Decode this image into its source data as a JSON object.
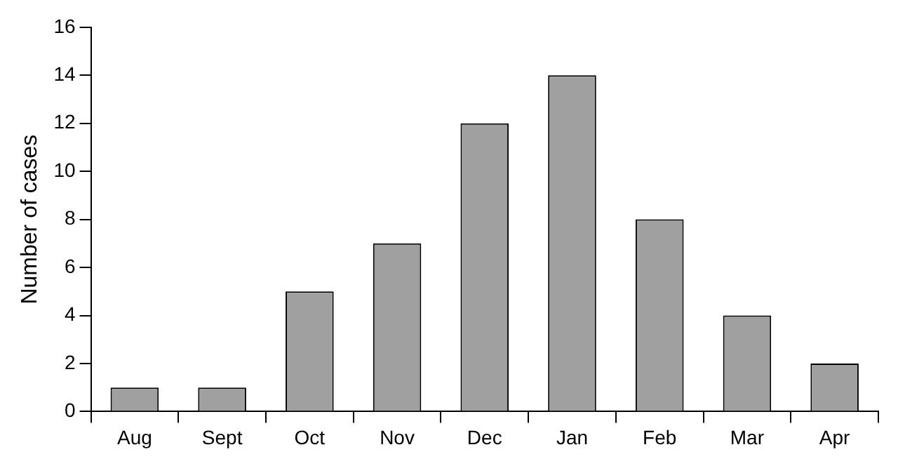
{
  "chart_data": {
    "type": "bar",
    "ylabel": "Number of cases",
    "categories": [
      "Aug",
      "Sept",
      "Oct",
      "Nov",
      "Dec",
      "Jan",
      "Feb",
      "Mar",
      "Apr"
    ],
    "values": [
      1,
      1,
      5,
      7,
      12,
      14,
      8,
      4,
      2
    ],
    "color": "#a0a0a0",
    "ylim": [
      0,
      16
    ],
    "yticks": [
      0,
      2,
      4,
      6,
      8,
      10,
      12,
      14,
      16
    ],
    "grid": false
  }
}
